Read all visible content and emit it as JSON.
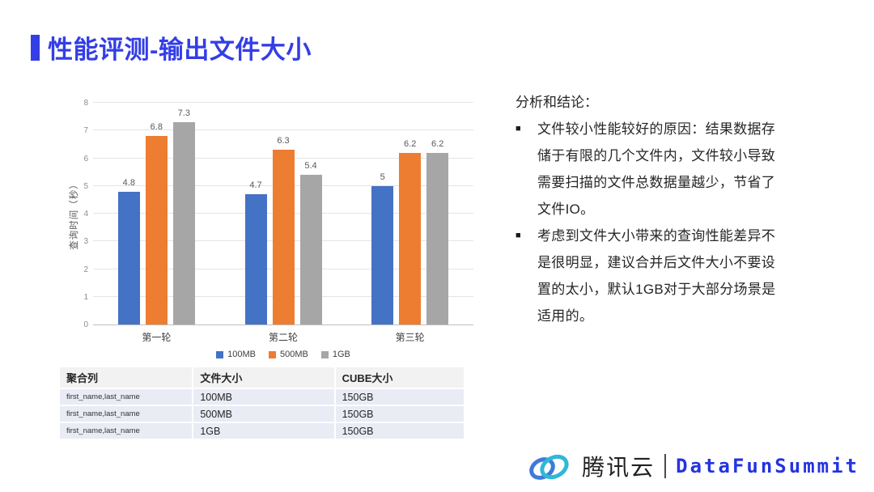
{
  "slide": {
    "title": "性能评测-输出文件大小",
    "accent_color": "#333EE6"
  },
  "chart_data": {
    "type": "bar",
    "categories": [
      "第一轮",
      "第二轮",
      "第三轮"
    ],
    "series": [
      {
        "name": "100MB",
        "color": "#4472C4",
        "values": [
          4.8,
          4.7,
          5
        ]
      },
      {
        "name": "500MB",
        "color": "#ED7D31",
        "values": [
          6.8,
          6.3,
          6.2
        ]
      },
      {
        "name": "1GB",
        "color": "#A6A6A6",
        "values": [
          7.3,
          5.4,
          6.2
        ]
      }
    ],
    "title": "",
    "xlabel": "",
    "ylabel": "查询时间（秒）",
    "ylim": [
      0,
      8
    ],
    "ytick_step": 1,
    "grid": true,
    "legend_position": "bottom",
    "value_labels": true
  },
  "table": {
    "headers": [
      "聚合列",
      "文件大小",
      "CUBE大小"
    ],
    "rows": [
      [
        "first_name,last_name",
        "100MB",
        "150GB"
      ],
      [
        "first_name,last_name",
        "500MB",
        "150GB"
      ],
      [
        "first_name,last_name",
        "1GB",
        "150GB"
      ]
    ]
  },
  "analysis": {
    "heading": "分析和结论：",
    "bullet_char": "■",
    "bullets": [
      "文件较小性能较好的原因：结果数据存储于有限的几个文件内，文件较小导致需要扫描的文件总数据量越少，节省了文件IO。",
      "考虑到文件大小带来的查询性能差异不是很明显，建议合并后文件大小不要设置的太小，默认1GB对于大部分场景是适用的。"
    ]
  },
  "footer": {
    "brand_cn": "腾讯云",
    "divider": "|",
    "brand_en": "DataFunSummit",
    "brand_en_color": "#2433E0",
    "logo_blue": "#3E7BD9",
    "logo_teal": "#2FB8D8"
  }
}
